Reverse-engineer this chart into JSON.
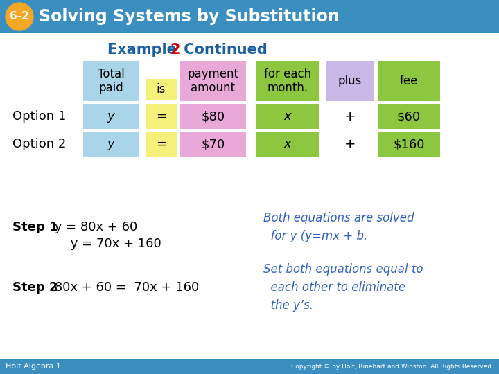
{
  "title_badge": "6-2",
  "title_text": "Solving Systems by Substitution",
  "title_bg": "#3a8fc0",
  "title_badge_bg": "#f5a623",
  "subtitle_1": "Example ",
  "subtitle_2": "2",
  "subtitle_3": " Continued",
  "subtitle_color": "#1a5fa0",
  "subtitle_2_color": "#cc0000",
  "bg_color": "#ffffff",
  "footer_bg": "#3a8fc0",
  "footer_left": "Holt Algebra 1",
  "footer_right": "Copyright © by Holt, Rinehart and Winston. All Rights Reserved.",
  "col_headers": [
    "Total\npaid",
    "is",
    "payment\namount",
    "for each\nmonth.",
    "plus",
    "fee"
  ],
  "col_header_colors": [
    "#aad4e8",
    "#f5f07a",
    "#e8a8d8",
    "#8dc63f",
    "#c8b8e8",
    "#8dc63f"
  ],
  "row1_label": "Option 1",
  "row2_label": "Option 2",
  "row1": [
    "y",
    "=",
    "$80",
    "x",
    "+",
    "$60"
  ],
  "row2": [
    "y",
    "=",
    "$70",
    "x",
    "+",
    "$160"
  ],
  "row1_colors": [
    "#aad4e8",
    "#f5f07a",
    "#e8a8d8",
    "#8dc63f",
    "#c8b8e8",
    "#8dc63f"
  ],
  "row2_colors": [
    "#aad4e8",
    "#f5f07a",
    "#e8a8d8",
    "#8dc63f",
    "#c8b8e8",
    "#8dc63f"
  ],
  "step1_bold": "Step 1",
  "step1_line1": " y = 80x + 60",
  "step1_line2": "     y = 70x + 160",
  "step1_note": "Both equations are solved\n  for y (y=mx + b.",
  "step2_bold": "Step 2",
  "step2_eq": " 80x + 60 =  70x + 160",
  "step2_note": "Set both equations equal to\n  each other to eliminate\n  the y’s.",
  "note_color": "#3060c0"
}
